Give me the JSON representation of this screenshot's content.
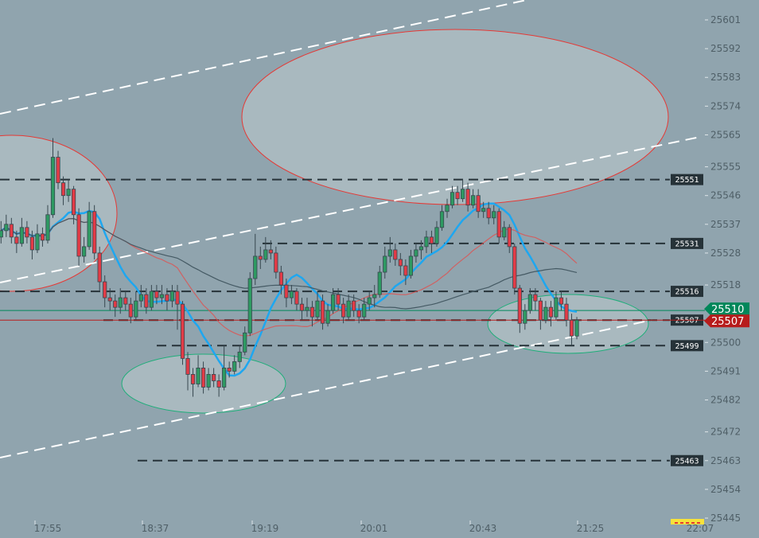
{
  "chart_data": {
    "type": "candlestick",
    "title": "",
    "y_axis": {
      "position": "right",
      "range": [
        25445,
        25601
      ],
      "tick_labels": [
        "25601",
        "25592",
        "25583",
        "25574",
        "25565",
        "25555",
        "25546",
        "25537",
        "25528",
        "25518",
        "25500",
        "25491",
        "25482",
        "25472",
        "25463",
        "25454",
        "25445"
      ]
    },
    "x_axis": {
      "tick_labels": [
        "17:55",
        "18:37",
        "19:19",
        "20:01",
        "20:43",
        "21:25",
        "22:07"
      ]
    },
    "grid": false,
    "candles": [
      [
        25533,
        25538,
        25531,
        25535
      ],
      [
        25535,
        25540,
        25533,
        25537
      ],
      [
        25537,
        25539,
        25531,
        25533
      ],
      [
        25533,
        25535,
        25528,
        25531
      ],
      [
        25531,
        25539,
        25530,
        25536
      ],
      [
        25536,
        25538,
        25531,
        25533
      ],
      [
        25533,
        25535,
        25526,
        25529
      ],
      [
        25529,
        25537,
        25528,
        25534
      ],
      [
        25534,
        25536,
        25530,
        25532
      ],
      [
        25532,
        25543,
        25531,
        25540
      ],
      [
        25540,
        25564,
        25539,
        25558
      ],
      [
        25558,
        25560,
        25548,
        25550
      ],
      [
        25550,
        25552,
        25543,
        25546
      ],
      [
        25546,
        25551,
        25544,
        25548
      ],
      [
        25548,
        25549,
        25537,
        25540
      ],
      [
        25540,
        25542,
        25524,
        25527
      ],
      [
        25527,
        25533,
        25525,
        25530
      ],
      [
        25530,
        25544,
        25529,
        25541
      ],
      [
        25541,
        25543,
        25526,
        25528
      ],
      [
        25528,
        25530,
        25516,
        25519
      ],
      [
        25519,
        25521,
        25511,
        25514
      ],
      [
        25514,
        25517,
        25510,
        25513
      ],
      [
        25513,
        25515,
        25508,
        25511
      ],
      [
        25511,
        25517,
        25509,
        25514
      ],
      [
        25514,
        25516,
        25510,
        25512
      ],
      [
        25512,
        25514,
        25506,
        25508
      ],
      [
        25508,
        25516,
        25507,
        25513
      ],
      [
        25513,
        25518,
        25511,
        25515
      ],
      [
        25515,
        25517,
        25509,
        25511
      ],
      [
        25511,
        25518,
        25510,
        25516
      ],
      [
        25516,
        25518,
        25512,
        25514
      ],
      [
        25514,
        25518,
        25512,
        25515
      ],
      [
        25515,
        25517,
        25510,
        25513
      ],
      [
        25513,
        25518,
        25511,
        25516
      ],
      [
        25516,
        25518,
        25504,
        25512
      ],
      [
        25512,
        25513,
        25493,
        25495
      ],
      [
        25495,
        25497,
        25485,
        25490
      ],
      [
        25490,
        25492,
        25483,
        25487
      ],
      [
        25487,
        25496,
        25486,
        25492
      ],
      [
        25492,
        25494,
        25484,
        25486
      ],
      [
        25486,
        25492,
        25485,
        25490
      ],
      [
        25490,
        25492,
        25486,
        25488
      ],
      [
        25488,
        25490,
        25483,
        25486
      ],
      [
        25486,
        25499,
        25485,
        25492
      ],
      [
        25492,
        25494,
        25489,
        25491
      ],
      [
        25491,
        25496,
        25490,
        25494
      ],
      [
        25494,
        25499,
        25492,
        25497
      ],
      [
        25497,
        25505,
        25496,
        25503
      ],
      [
        25503,
        25522,
        25502,
        25520
      ],
      [
        25520,
        25534,
        25518,
        25527
      ],
      [
        25527,
        25530,
        25523,
        25526
      ],
      [
        25526,
        25533,
        25525,
        25529
      ],
      [
        25529,
        25532,
        25526,
        25528
      ],
      [
        25528,
        25530,
        25520,
        25522
      ],
      [
        25522,
        25524,
        25515,
        25518
      ],
      [
        25518,
        25520,
        25511,
        25514
      ],
      [
        25514,
        25518,
        25512,
        25516
      ],
      [
        25516,
        25517,
        25510,
        25512
      ],
      [
        25512,
        25514,
        25507,
        25510
      ],
      [
        25510,
        25514,
        25508,
        25511
      ],
      [
        25511,
        25513,
        25505,
        25508
      ],
      [
        25508,
        25516,
        25507,
        25513
      ],
      [
        25513,
        25515,
        25504,
        25506
      ],
      [
        25506,
        25512,
        25505,
        25510
      ],
      [
        25510,
        25517,
        25509,
        25515
      ],
      [
        25515,
        25517,
        25510,
        25512
      ],
      [
        25512,
        25514,
        25506,
        25508
      ],
      [
        25508,
        25515,
        25507,
        25513
      ],
      [
        25513,
        25515,
        25508,
        25510
      ],
      [
        25510,
        25512,
        25506,
        25508
      ],
      [
        25508,
        25514,
        25507,
        25512
      ],
      [
        25512,
        25516,
        25510,
        25514
      ],
      [
        25514,
        25518,
        25511,
        25515
      ],
      [
        25515,
        25524,
        25514,
        25522
      ],
      [
        25522,
        25530,
        25520,
        25527
      ],
      [
        25527,
        25533,
        25525,
        25529
      ],
      [
        25529,
        25531,
        25524,
        25526
      ],
      [
        25526,
        25528,
        25521,
        25524
      ],
      [
        25524,
        25526,
        25518,
        25521
      ],
      [
        25521,
        25529,
        25520,
        25527
      ],
      [
        25527,
        25531,
        25525,
        25529
      ],
      [
        25529,
        25532,
        25526,
        25530
      ],
      [
        25530,
        25535,
        25528,
        25533
      ],
      [
        25533,
        25535,
        25528,
        25531
      ],
      [
        25531,
        25538,
        25530,
        25536
      ],
      [
        25536,
        25543,
        25535,
        25541
      ],
      [
        25541,
        25545,
        25539,
        25543
      ],
      [
        25543,
        25549,
        25542,
        25547
      ],
      [
        25547,
        25549,
        25543,
        25545
      ],
      [
        25545,
        25551,
        25544,
        25548
      ],
      [
        25548,
        25550,
        25541,
        25543
      ],
      [
        25543,
        25548,
        25542,
        25546
      ],
      [
        25546,
        25548,
        25539,
        25541
      ],
      [
        25541,
        25544,
        25539,
        25542
      ],
      [
        25542,
        25544,
        25537,
        25539
      ],
      [
        25539,
        25543,
        25537,
        25541
      ],
      [
        25541,
        25542,
        25531,
        25533
      ],
      [
        25533,
        25538,
        25532,
        25536
      ],
      [
        25536,
        25537,
        25528,
        25530
      ],
      [
        25530,
        25531,
        25515,
        25517
      ],
      [
        25517,
        25518,
        25503,
        25506
      ],
      [
        25506,
        25512,
        25504,
        25510
      ],
      [
        25510,
        25517,
        25509,
        25515
      ],
      [
        25515,
        25517,
        25510,
        25513
      ],
      [
        25513,
        25514,
        25504,
        25507
      ],
      [
        25507,
        25513,
        25506,
        25511
      ],
      [
        25511,
        25513,
        25505,
        25508
      ],
      [
        25508,
        25516,
        25507,
        25514
      ],
      [
        25514,
        25516,
        25510,
        25512
      ],
      [
        25512,
        25514,
        25505,
        25507
      ],
      [
        25507,
        25509,
        25499,
        25502
      ],
      [
        25502,
        25508,
        25501,
        25507
      ]
    ],
    "moving_averages": [
      {
        "color": "#1ea7f0"
      },
      {
        "color": "#e0504f"
      },
      {
        "color": "#455a64"
      }
    ],
    "levels": [
      {
        "price": 25551,
        "label": "25551"
      },
      {
        "price": 25531,
        "label": "25531"
      },
      {
        "price": 25516,
        "label": "25516"
      },
      {
        "price": 25507,
        "label": "25507"
      },
      {
        "price": 25499,
        "label": "25499"
      },
      {
        "price": 25463,
        "label": "25463"
      }
    ],
    "current_prices": [
      {
        "label": "25510",
        "price": 25510,
        "color": "#00875a"
      },
      {
        "label": "25507",
        "price": 25507,
        "color": "#b71c1c"
      }
    ],
    "colors": {
      "background": "#90a4ae",
      "up": "#2e9a62",
      "down": "#e23b46",
      "level_line": "#263238",
      "trendline": "#ffffff",
      "zone_red": "#e53935",
      "zone_green": "#1fae7a"
    }
  }
}
